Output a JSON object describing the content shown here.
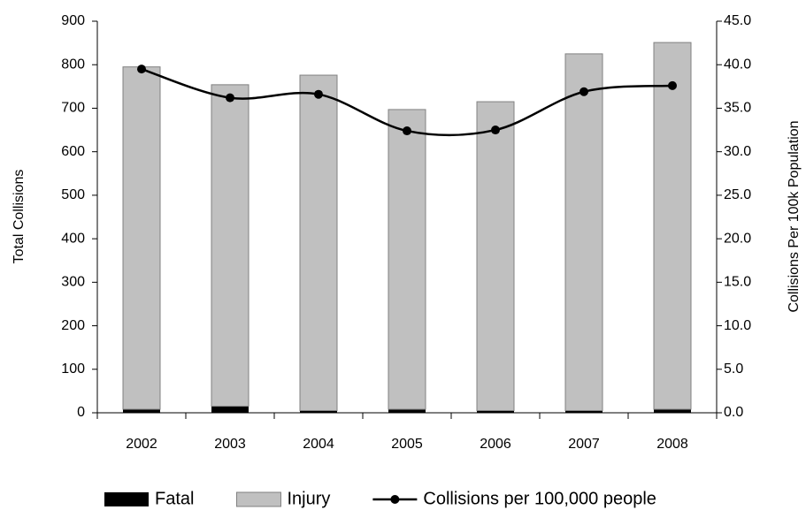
{
  "chart_data": {
    "type": "bar",
    "categories": [
      "2002",
      "2003",
      "2004",
      "2005",
      "2006",
      "2007",
      "2008"
    ],
    "y_label": "Total Collisions",
    "y2_label": "Collisions Per 100k Population",
    "stacked": true,
    "series": [
      {
        "name": "Fatal",
        "color": "#000000",
        "values": [
          8,
          15,
          5,
          8,
          5,
          5,
          8
        ]
      },
      {
        "name": "Injury",
        "color": "#c0c0c0",
        "values": [
          787,
          739,
          771,
          689,
          710,
          820,
          843
        ]
      },
      {
        "name": "Collisions per 100,000 people",
        "color": "#000000",
        "type": "line",
        "axis": "y2",
        "values": [
          39.5,
          36.2,
          36.6,
          32.4,
          32.5,
          36.9,
          37.6
        ]
      }
    ],
    "ylim": [
      0,
      900
    ],
    "yticks": [
      0,
      100,
      200,
      300,
      400,
      500,
      600,
      700,
      800,
      900
    ],
    "y2lim": [
      0,
      45
    ],
    "y2ticks": [
      {
        "value": 0,
        "label": "0.0"
      },
      {
        "value": 5,
        "label": "5.0"
      },
      {
        "value": 10,
        "label": "10.0"
      },
      {
        "value": 15,
        "label": "15.0"
      },
      {
        "value": 20,
        "label": "20.0"
      },
      {
        "value": 25,
        "label": "25.0"
      },
      {
        "value": 30,
        "label": "30.0"
      },
      {
        "value": 35,
        "label": "35.0"
      },
      {
        "value": 40,
        "label": "40.0"
      },
      {
        "value": 45,
        "label": "45.0"
      }
    ],
    "legend": "bottom"
  }
}
